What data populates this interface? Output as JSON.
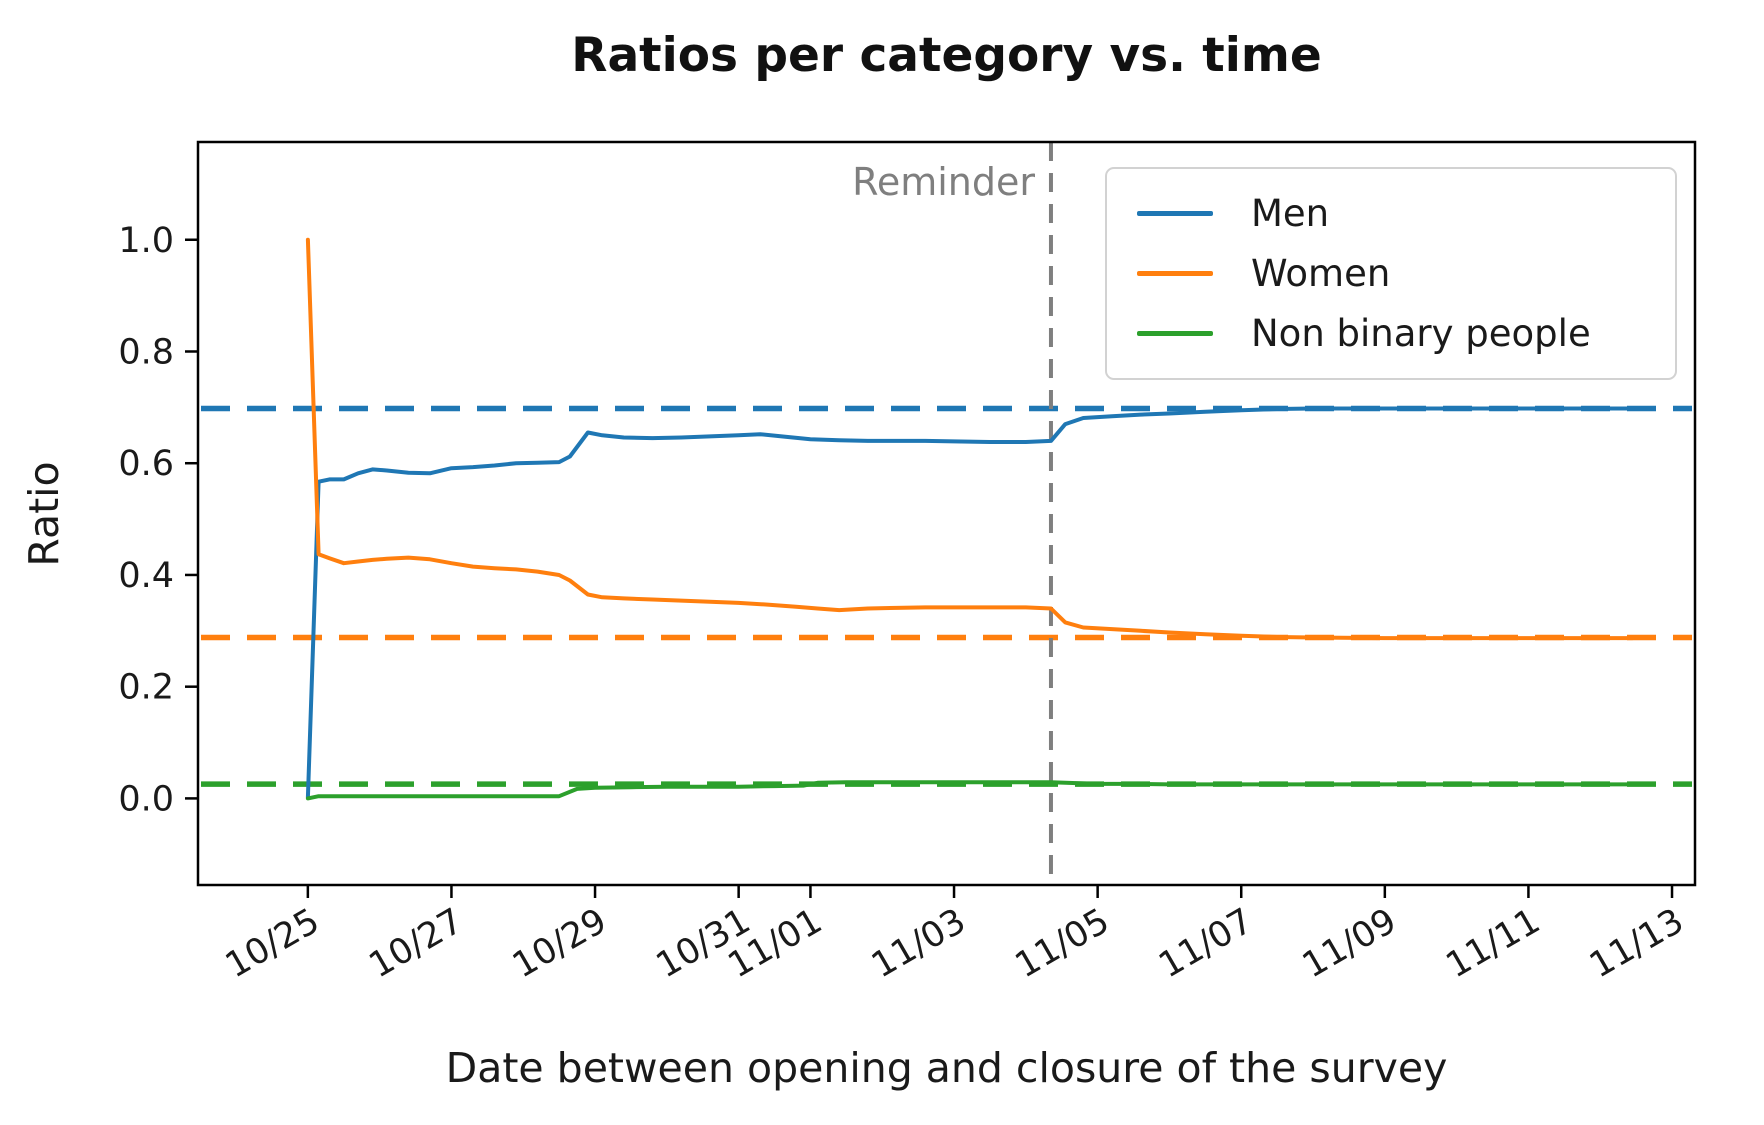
{
  "chart_data": {
    "type": "line",
    "title": "Ratios per category vs. time",
    "xlabel": "Date between opening and closure of the survey",
    "ylabel": "Ratio",
    "grid": false,
    "x_unit": "days since 10/25",
    "xlim_days": [
      -1.53,
      19.32
    ],
    "ylim": [
      -0.155,
      1.175
    ],
    "y_ticks": [
      0.0,
      0.2,
      0.4,
      0.6,
      0.8,
      1.0
    ],
    "x_ticks": [
      {
        "label": "10/25",
        "day": 0
      },
      {
        "label": "10/27",
        "day": 2
      },
      {
        "label": "10/29",
        "day": 4
      },
      {
        "label": "10/31",
        "day": 6
      },
      {
        "label": "11/01",
        "day": 7
      },
      {
        "label": "11/03",
        "day": 9
      },
      {
        "label": "11/05",
        "day": 11
      },
      {
        "label": "11/07",
        "day": 13
      },
      {
        "label": "11/09",
        "day": 15
      },
      {
        "label": "11/11",
        "day": 17
      },
      {
        "label": "11/13",
        "day": 19
      }
    ],
    "legend": {
      "position": "upper right",
      "entries": [
        "Men",
        "Women",
        "Non binary people"
      ]
    },
    "annotation": {
      "label": "Reminder",
      "day": 10.35,
      "color": "#7f7f7f",
      "style": "dashed-vertical"
    },
    "reference_lines": [
      {
        "series": "Men",
        "value": 0.698,
        "color": "#1f77b4",
        "style": "dashed"
      },
      {
        "series": "Women",
        "value": 0.288,
        "color": "#ff7f0e",
        "style": "dashed"
      },
      {
        "series": "Non binary people",
        "value": 0.0255,
        "color": "#2ca02c",
        "style": "dashed"
      }
    ],
    "series": [
      {
        "name": "Men",
        "color": "#1f77b4",
        "points": [
          [
            0,
            0.002
          ],
          [
            0.15,
            0.567
          ],
          [
            0.3,
            0.571
          ],
          [
            0.5,
            0.571
          ],
          [
            0.7,
            0.582
          ],
          [
            0.9,
            0.589
          ],
          [
            1.1,
            0.587
          ],
          [
            1.4,
            0.583
          ],
          [
            1.7,
            0.582
          ],
          [
            2.0,
            0.591
          ],
          [
            2.3,
            0.593
          ],
          [
            2.6,
            0.596
          ],
          [
            2.9,
            0.6
          ],
          [
            3.2,
            0.601
          ],
          [
            3.5,
            0.602
          ],
          [
            3.65,
            0.612
          ],
          [
            3.9,
            0.655
          ],
          [
            4.1,
            0.65
          ],
          [
            4.4,
            0.646
          ],
          [
            4.8,
            0.645
          ],
          [
            5.2,
            0.646
          ],
          [
            5.6,
            0.648
          ],
          [
            6.0,
            0.65
          ],
          [
            6.3,
            0.652
          ],
          [
            6.6,
            0.648
          ],
          [
            7.0,
            0.643
          ],
          [
            7.4,
            0.641
          ],
          [
            7.8,
            0.64
          ],
          [
            8.2,
            0.64
          ],
          [
            8.6,
            0.64
          ],
          [
            9.0,
            0.639
          ],
          [
            9.5,
            0.638
          ],
          [
            10.0,
            0.638
          ],
          [
            10.35,
            0.64
          ],
          [
            10.55,
            0.67
          ],
          [
            10.8,
            0.681
          ],
          [
            11.2,
            0.684
          ],
          [
            11.6,
            0.687
          ],
          [
            12.0,
            0.689
          ],
          [
            12.5,
            0.692
          ],
          [
            13.0,
            0.695
          ],
          [
            13.5,
            0.697
          ],
          [
            14.0,
            0.698
          ],
          [
            15.0,
            0.698
          ],
          [
            16.0,
            0.698
          ],
          [
            17.0,
            0.698
          ],
          [
            18.0,
            0.698
          ],
          [
            18.45,
            0.698
          ]
        ]
      },
      {
        "name": "Women",
        "color": "#ff7f0e",
        "points": [
          [
            0,
            1.0
          ],
          [
            0.15,
            0.437
          ],
          [
            0.3,
            0.43
          ],
          [
            0.5,
            0.421
          ],
          [
            0.7,
            0.424
          ],
          [
            0.9,
            0.427
          ],
          [
            1.1,
            0.429
          ],
          [
            1.4,
            0.431
          ],
          [
            1.7,
            0.428
          ],
          [
            2.0,
            0.421
          ],
          [
            2.3,
            0.415
          ],
          [
            2.6,
            0.412
          ],
          [
            2.9,
            0.41
          ],
          [
            3.2,
            0.406
          ],
          [
            3.5,
            0.4
          ],
          [
            3.65,
            0.39
          ],
          [
            3.9,
            0.365
          ],
          [
            4.1,
            0.36
          ],
          [
            4.4,
            0.358
          ],
          [
            4.8,
            0.356
          ],
          [
            5.2,
            0.354
          ],
          [
            5.6,
            0.352
          ],
          [
            6.0,
            0.35
          ],
          [
            6.4,
            0.347
          ],
          [
            6.8,
            0.343
          ],
          [
            7.1,
            0.34
          ],
          [
            7.4,
            0.337
          ],
          [
            7.8,
            0.34
          ],
          [
            8.2,
            0.341
          ],
          [
            8.6,
            0.342
          ],
          [
            9.0,
            0.342
          ],
          [
            9.5,
            0.342
          ],
          [
            10.0,
            0.342
          ],
          [
            10.35,
            0.34
          ],
          [
            10.55,
            0.315
          ],
          [
            10.8,
            0.306
          ],
          [
            11.2,
            0.303
          ],
          [
            11.6,
            0.3
          ],
          [
            12.0,
            0.297
          ],
          [
            12.5,
            0.294
          ],
          [
            13.0,
            0.291
          ],
          [
            13.5,
            0.289
          ],
          [
            14.0,
            0.288
          ],
          [
            15.0,
            0.287
          ],
          [
            16.0,
            0.287
          ],
          [
            17.0,
            0.287
          ],
          [
            18.0,
            0.287
          ],
          [
            18.45,
            0.287
          ]
        ]
      },
      {
        "name": "Non binary people",
        "color": "#2ca02c",
        "points": [
          [
            0,
            0.0
          ],
          [
            0.15,
            0.004
          ],
          [
            0.5,
            0.004
          ],
          [
            1.0,
            0.004
          ],
          [
            1.5,
            0.004
          ],
          [
            2.0,
            0.004
          ],
          [
            2.5,
            0.004
          ],
          [
            3.0,
            0.004
          ],
          [
            3.5,
            0.004
          ],
          [
            3.75,
            0.017
          ],
          [
            4.0,
            0.019
          ],
          [
            4.5,
            0.02
          ],
          [
            5.0,
            0.021
          ],
          [
            5.5,
            0.021
          ],
          [
            6.0,
            0.021
          ],
          [
            6.5,
            0.022
          ],
          [
            6.9,
            0.023
          ],
          [
            7.1,
            0.028
          ],
          [
            7.5,
            0.029
          ],
          [
            8.0,
            0.029
          ],
          [
            8.5,
            0.029
          ],
          [
            9.0,
            0.029
          ],
          [
            9.5,
            0.029
          ],
          [
            10.0,
            0.029
          ],
          [
            10.35,
            0.029
          ],
          [
            10.75,
            0.027
          ],
          [
            11.0,
            0.026
          ],
          [
            11.5,
            0.026
          ],
          [
            12.0,
            0.025
          ],
          [
            13.0,
            0.025
          ],
          [
            14.0,
            0.025
          ],
          [
            15.0,
            0.025
          ],
          [
            16.0,
            0.025
          ],
          [
            17.0,
            0.025
          ],
          [
            18.0,
            0.025
          ],
          [
            18.45,
            0.025
          ]
        ]
      }
    ]
  }
}
